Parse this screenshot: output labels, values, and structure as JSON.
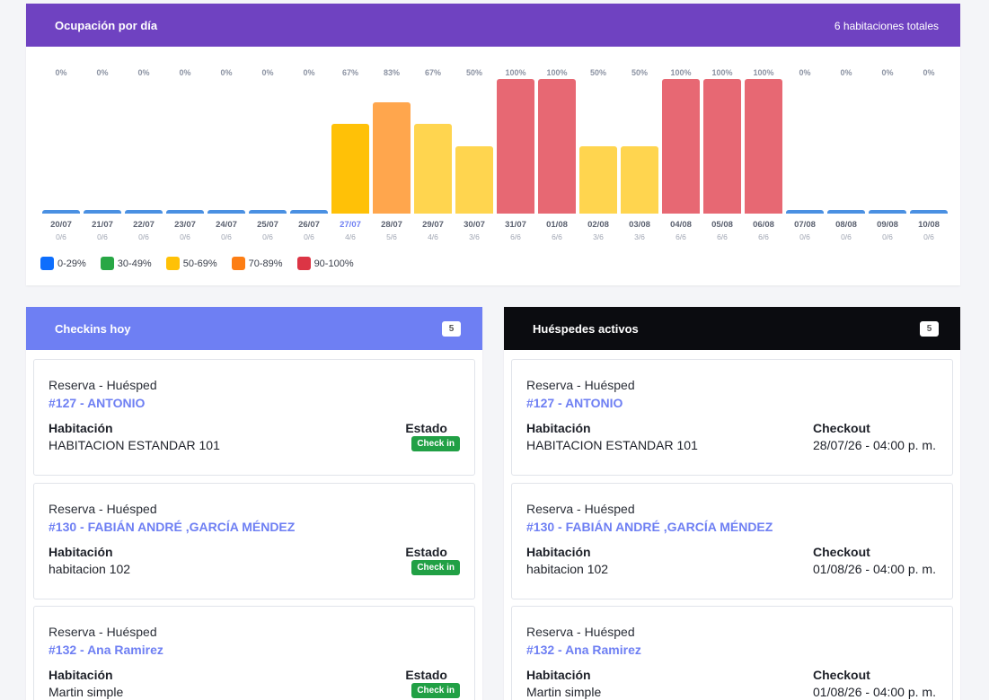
{
  "occupancy": {
    "title": "Ocupación por día",
    "total_rooms": "6 habitaciones totales",
    "legend": [
      {
        "label": "0-29%",
        "color": "#0d6efd"
      },
      {
        "label": "30-49%",
        "color": "#28a745"
      },
      {
        "label": "50-69%",
        "color": "#ffc107"
      },
      {
        "label": "70-89%",
        "color": "#fd7e14"
      },
      {
        "label": "90-100%",
        "color": "#dc3545"
      }
    ],
    "today": "27/07"
  },
  "chart_data": {
    "type": "bar",
    "categories": [
      "20/07",
      "21/07",
      "22/07",
      "23/07",
      "24/07",
      "25/07",
      "26/07",
      "27/07",
      "28/07",
      "29/07",
      "30/07",
      "31/07",
      "01/08",
      "02/08",
      "03/08",
      "04/08",
      "05/08",
      "06/08",
      "07/08",
      "08/08",
      "09/08",
      "10/08"
    ],
    "values": [
      0,
      0,
      0,
      0,
      0,
      0,
      0,
      67,
      83,
      67,
      50,
      100,
      100,
      50,
      50,
      100,
      100,
      100,
      0,
      0,
      0,
      0
    ],
    "value_labels": [
      "0%",
      "0%",
      "0%",
      "0%",
      "0%",
      "0%",
      "0%",
      "67%",
      "83%",
      "67%",
      "50%",
      "100%",
      "100%",
      "50%",
      "50%",
      "100%",
      "100%",
      "100%",
      "0%",
      "0%",
      "0%",
      "0%"
    ],
    "counts": [
      "0/6",
      "0/6",
      "0/6",
      "0/6",
      "0/6",
      "0/6",
      "0/6",
      "4/6",
      "5/6",
      "4/6",
      "3/6",
      "6/6",
      "6/6",
      "3/6",
      "3/6",
      "6/6",
      "6/6",
      "6/6",
      "0/6",
      "0/6",
      "0/6",
      "0/6"
    ],
    "ylim": [
      0,
      100
    ]
  },
  "checkins": {
    "title": "Checkins hoy",
    "count": "5",
    "items": [
      {
        "res_label": "Reserva - Huésped",
        "name": "#127 - ANTONIO",
        "room_label": "Habitación",
        "room": "HABITACION ESTANDAR 101",
        "status_label": "Estado",
        "status": "Check in"
      },
      {
        "res_label": "Reserva - Huésped",
        "name": "#130 - FABIÁN ANDRÉ ,GARCÍA MÉNDEZ",
        "room_label": "Habitación",
        "room": "habitacion 102",
        "status_label": "Estado",
        "status": "Check in"
      },
      {
        "res_label": "Reserva - Huésped",
        "name": "#132 - Ana Ramirez",
        "room_label": "Habitación",
        "room": "Martin simple",
        "status_label": "Estado",
        "status": "Check in"
      }
    ]
  },
  "guests": {
    "title": "Huéspedes activos",
    "count": "5",
    "items": [
      {
        "res_label": "Reserva - Huésped",
        "name": "#127 - ANTONIO",
        "room_label": "Habitación",
        "room": "HABITACION ESTANDAR 101",
        "checkout_label": "Checkout",
        "checkout": "28/07/26 - 04:00 p. m."
      },
      {
        "res_label": "Reserva - Huésped",
        "name": "#130 - FABIÁN ANDRÉ ,GARCÍA MÉNDEZ",
        "room_label": "Habitación",
        "room": "habitacion 102",
        "checkout_label": "Checkout",
        "checkout": "01/08/26 - 04:00 p. m."
      },
      {
        "res_label": "Reserva - Huésped",
        "name": "#132 - Ana Ramirez",
        "room_label": "Habitación",
        "room": "Martin simple",
        "checkout_label": "Checkout",
        "checkout": "01/08/26 - 04:00 p. m."
      }
    ]
  }
}
